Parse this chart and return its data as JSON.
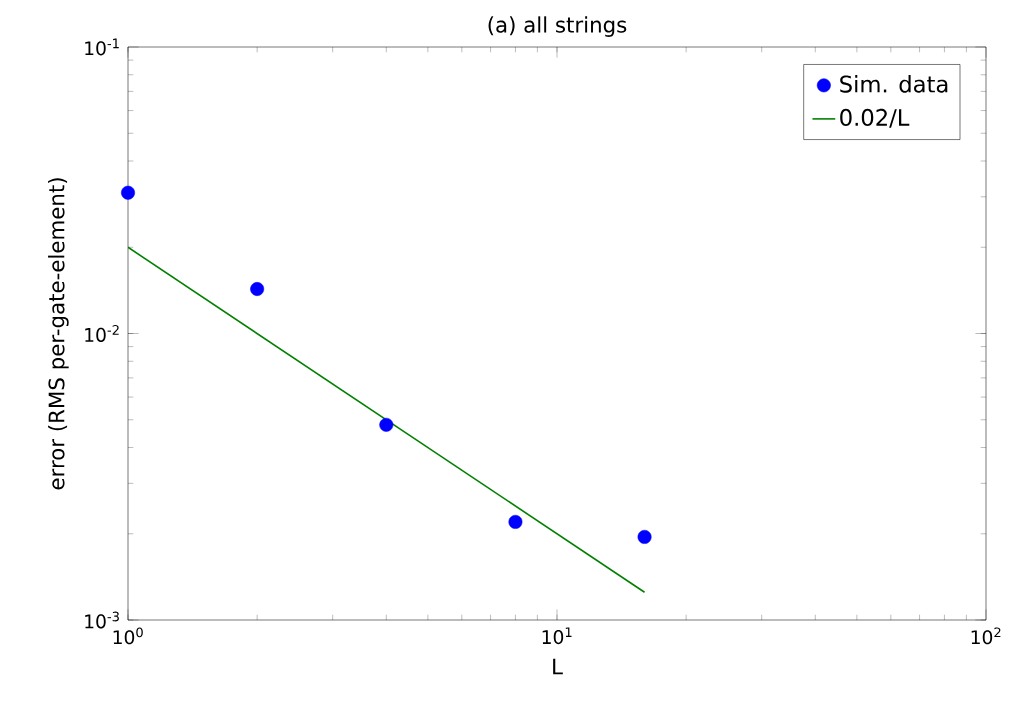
{
  "chart_data": {
    "type": "scatter",
    "title": "(a) all strings",
    "xlabel": "L",
    "ylabel": "error (RMS per-gate-element)",
    "x": [
      1,
      2,
      4,
      8,
      16
    ],
    "series": [
      {
        "name": "Sim. data",
        "color": "#0000ff",
        "marker": "circle",
        "values": [
          0.031,
          0.0143,
          0.0048,
          0.0022,
          0.00195
        ]
      },
      {
        "name": "0.02/L",
        "type": "line",
        "color": "#008000",
        "line_style": "solid",
        "marker": "none",
        "x": [
          1,
          16
        ],
        "values": [
          0.02,
          0.00125
        ]
      }
    ],
    "log": "xy",
    "xlim": [
      1,
      100
    ],
    "ylim": [
      0.001,
      0.1
    ],
    "xticks": [
      {
        "value": 1,
        "label": "10$^{0}$"
      },
      {
        "value": 10,
        "label": "10$^{1}$"
      },
      {
        "value": 100,
        "label": "10$^{2}$"
      }
    ],
    "yticks": [
      {
        "value": 0.001,
        "label": "10$^{-3}$"
      },
      {
        "value": 0.01,
        "label": "10$^{-2}$"
      },
      {
        "value": 0.1,
        "label": "10$^{-1}$"
      }
    ],
    "grid": false,
    "legend": "top right"
  }
}
